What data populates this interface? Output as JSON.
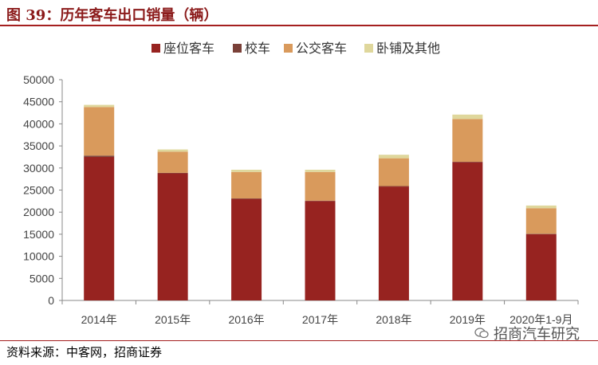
{
  "header": {
    "title": "图 39：历年客车出口销量（辆）"
  },
  "footer": {
    "source": "资料来源：中客网，招商证券",
    "watermark": "招商汽车研究"
  },
  "colors": {
    "seat_bus": "#972320",
    "school_bus": "#7a4038",
    "city_bus": "#d99a5c",
    "sleeper_bus": "#dfd79c",
    "title": "#8b1a1a",
    "rule": "#a52020"
  },
  "chart_data": {
    "type": "bar",
    "stacked": true,
    "categories": [
      "2014年",
      "2015年",
      "2016年",
      "2017年",
      "2018年",
      "2019年",
      "2020年1-9月"
    ],
    "series": [
      {
        "name": "座位客车",
        "values": [
          32500,
          28800,
          23000,
          22500,
          25800,
          31300,
          15000
        ]
      },
      {
        "name": "校车",
        "values": [
          300,
          100,
          100,
          100,
          100,
          100,
          100
        ]
      },
      {
        "name": "公交客车",
        "values": [
          11000,
          4800,
          6000,
          6500,
          6300,
          9700,
          5800
        ]
      },
      {
        "name": "卧铺及其他",
        "values": [
          500,
          500,
          500,
          500,
          800,
          1000,
          600
        ]
      }
    ],
    "ylim": [
      0,
      50000
    ],
    "yticks": [
      0,
      5000,
      10000,
      15000,
      20000,
      25000,
      30000,
      35000,
      40000,
      45000,
      50000
    ],
    "grid": false,
    "legend": "top"
  }
}
